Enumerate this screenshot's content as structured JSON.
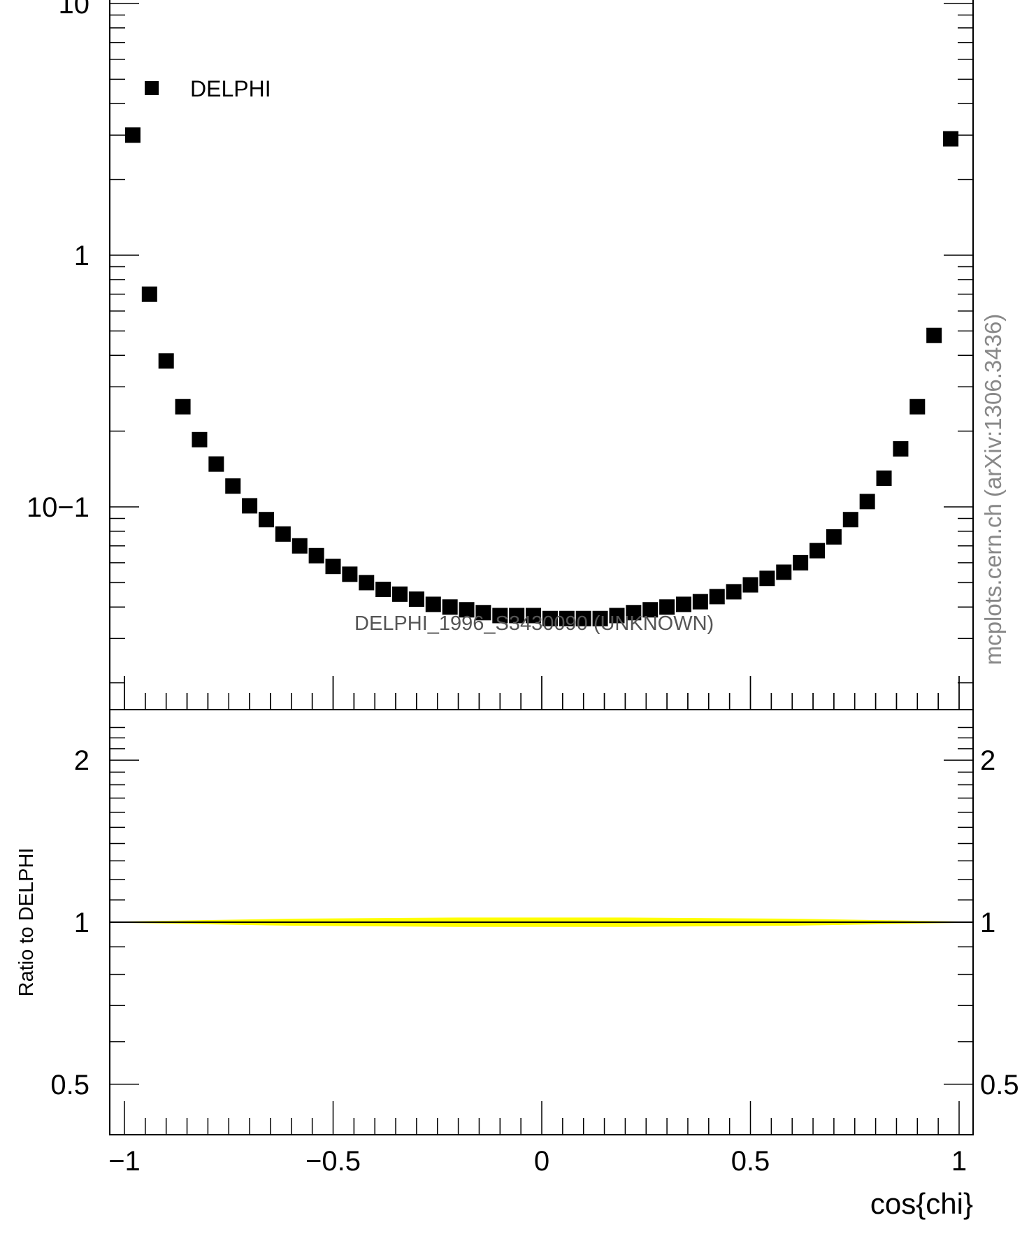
{
  "watermark": "mcplots.cern.ch (arXiv:1306.3436)",
  "chart_data": [
    {
      "type": "scatter",
      "panel": "main",
      "title": "",
      "xlabel": "",
      "ylabel": "",
      "yscale": "log",
      "xlim": [
        -1.04,
        1.04
      ],
      "ylim": [
        0.022,
        14
      ],
      "ytick_labels": [
        "10",
        "1",
        "10−1"
      ],
      "legend": {
        "placement": "top-left",
        "entries": [
          "DELPHI"
        ]
      },
      "annotation": "DELPHI_1996_S3430090 (UNKNOWN)",
      "marker_color": "#000000",
      "series": [
        {
          "name": "DELPHI",
          "x": [
            -0.98,
            -0.94,
            -0.9,
            -0.86,
            -0.82,
            -0.78,
            -0.74,
            -0.7,
            -0.66,
            -0.62,
            -0.58,
            -0.54,
            -0.5,
            -0.46,
            -0.42,
            -0.38,
            -0.34,
            -0.3,
            -0.26,
            -0.22,
            -0.18,
            -0.14,
            -0.1,
            -0.06,
            -0.02,
            0.02,
            0.06,
            0.1,
            0.14,
            0.18,
            0.22,
            0.26,
            0.3,
            0.34,
            0.38,
            0.42,
            0.46,
            0.5,
            0.54,
            0.58,
            0.62,
            0.66,
            0.7,
            0.74,
            0.78,
            0.82,
            0.86,
            0.9,
            0.94,
            0.98
          ],
          "y": [
            3.0,
            0.7,
            0.38,
            0.25,
            0.185,
            0.148,
            0.121,
            0.101,
            0.089,
            0.078,
            0.07,
            0.064,
            0.058,
            0.054,
            0.05,
            0.047,
            0.045,
            0.043,
            0.041,
            0.04,
            0.039,
            0.038,
            0.037,
            0.037,
            0.037,
            0.036,
            0.036,
            0.036,
            0.036,
            0.037,
            0.038,
            0.039,
            0.04,
            0.041,
            0.042,
            0.044,
            0.046,
            0.049,
            0.052,
            0.055,
            0.06,
            0.067,
            0.076,
            0.089,
            0.105,
            0.13,
            0.17,
            0.25,
            0.48,
            2.9
          ]
        }
      ]
    },
    {
      "type": "area",
      "panel": "ratio",
      "title": "",
      "xlabel": "cos{chi}",
      "ylabel": "Ratio to DELPHI",
      "xlim": [
        -1.04,
        1.04
      ],
      "ylim": [
        0.34,
        2.34
      ],
      "xtick_labels": [
        "−1",
        "−0.5",
        "0",
        "0.5",
        "1"
      ],
      "ytick_labels": [
        "2",
        "1",
        "0.5"
      ],
      "reference_line": 1,
      "band_color": "#ffff00",
      "series": [
        {
          "x": [
            -1.0,
            -0.6,
            -0.2,
            0.2,
            0.6,
            1.0
          ],
          "lower": [
            0.997,
            0.985,
            0.98,
            0.98,
            0.985,
            0.997
          ],
          "upper": [
            1.003,
            1.015,
            1.02,
            1.02,
            1.015,
            1.003
          ]
        }
      ]
    }
  ]
}
